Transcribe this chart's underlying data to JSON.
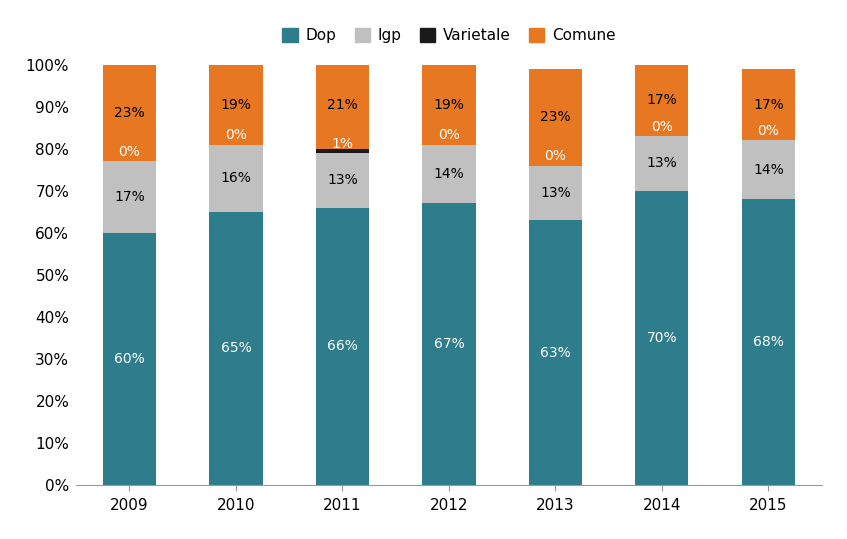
{
  "years": [
    "2009",
    "2010",
    "2011",
    "2012",
    "2013",
    "2014",
    "2015"
  ],
  "dop": [
    60,
    65,
    66,
    67,
    63,
    70,
    68
  ],
  "igp": [
    17,
    16,
    13,
    14,
    13,
    13,
    14
  ],
  "varietale": [
    0,
    0,
    1,
    0,
    0,
    0,
    0
  ],
  "comune": [
    23,
    19,
    21,
    19,
    23,
    17,
    17
  ],
  "colors": {
    "dop": "#2E7D8C",
    "igp": "#C0C0C0",
    "varietale": "#1A1A1A",
    "comune": "#E87722"
  },
  "background_color": "#FFFFFF",
  "bar_width": 0.5,
  "label_fontsize": 10,
  "tick_fontsize": 11
}
